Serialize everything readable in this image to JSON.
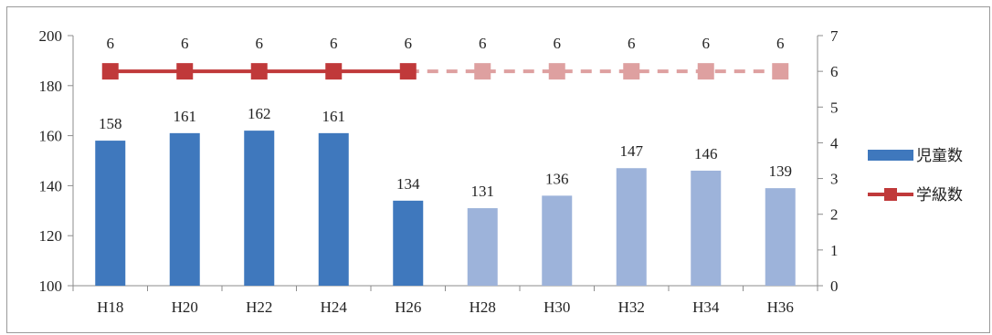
{
  "chart_data": {
    "type": "bar",
    "categories": [
      "H18",
      "H20",
      "H22",
      "H24",
      "H26",
      "H28",
      "H30",
      "H32",
      "H34",
      "H36"
    ],
    "series": [
      {
        "name": "児童数",
        "kind": "bar",
        "axis": "left",
        "values": [
          158,
          161,
          162,
          161,
          134,
          131,
          136,
          147,
          146,
          139
        ],
        "color_actual": "#3f78bd",
        "color_projected": "#9db3da",
        "projected_from": "H28"
      },
      {
        "name": "学級数",
        "kind": "line",
        "axis": "right",
        "values": [
          6,
          6,
          6,
          6,
          6,
          6,
          6,
          6,
          6,
          6
        ],
        "color_actual": "#c0393a",
        "color_projected": "#dea0a0",
        "projected_from": "H28",
        "projected_line_style": "dashed"
      }
    ],
    "y_left": {
      "lim": [
        100,
        200
      ],
      "ticks": [
        "100",
        "120",
        "140",
        "160",
        "180",
        "200"
      ]
    },
    "y_right": {
      "lim": [
        0,
        7
      ],
      "ticks": [
        "0",
        "1",
        "2",
        "3",
        "4",
        "5",
        "6",
        "7"
      ]
    },
    "grid": false,
    "data_labels": true,
    "legend": {
      "position": "right",
      "entries": [
        "児童数",
        "学級数"
      ]
    }
  }
}
